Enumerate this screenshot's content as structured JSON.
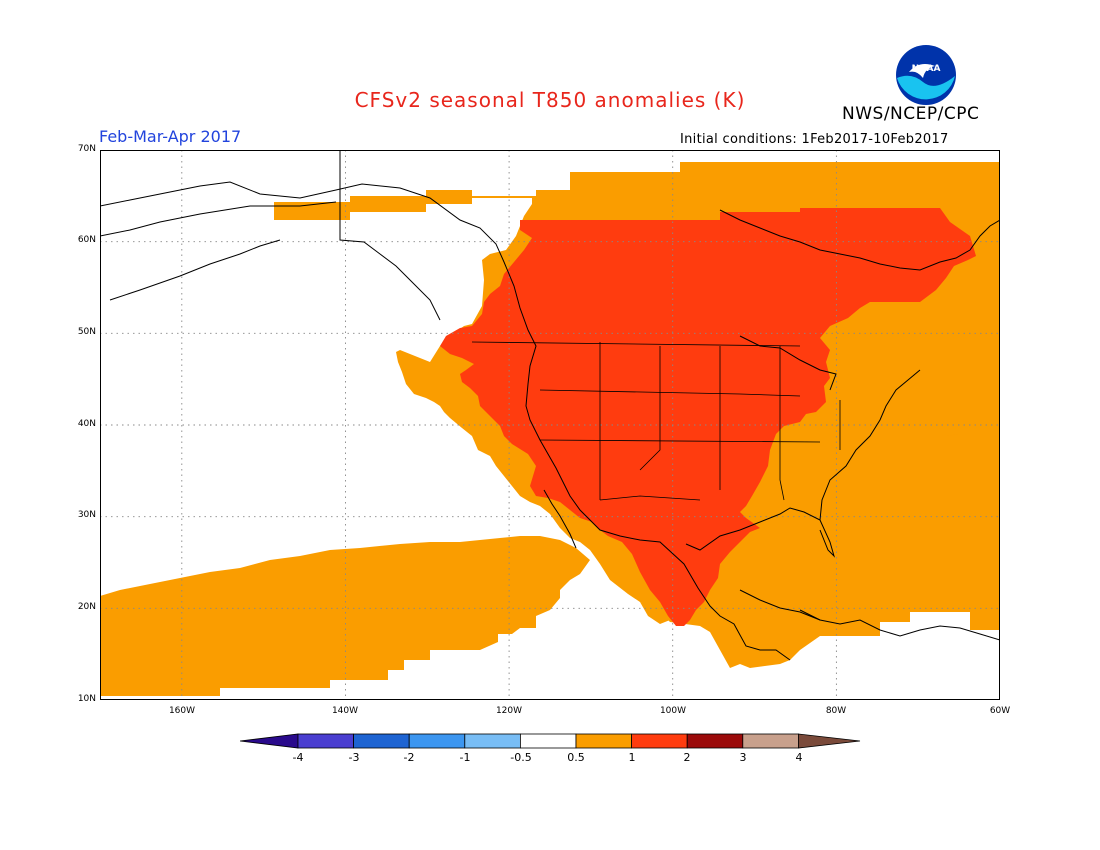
{
  "header": {
    "title": "CFSv2 seasonal T850 anomalies (K)",
    "agency": "NWS/NCEP/CPC",
    "period": "Feb-Mar-Apr 2017",
    "initial_conditions": "Initial conditions: 1Feb2017-10Feb2017",
    "logo_text": "NOAA"
  },
  "colors": {
    "title": "#e8261c",
    "period": "#2244dd",
    "anom_0_5_to_1": "#fa9d00",
    "anom_1_to_2": "#ff3c0f",
    "ocean_land_neutral": "#ffffff",
    "coastline": "#000000"
  },
  "map": {
    "projection": "lat-lon",
    "lon_range": [
      "170W",
      "60W"
    ],
    "lat_range": [
      "10N",
      "70N"
    ],
    "lat_labels": [
      "70N",
      "60N",
      "50N",
      "40N",
      "30N",
      "20N",
      "10N"
    ],
    "lon_labels": [
      "160W",
      "140W",
      "120W",
      "100W",
      "80W",
      "60W"
    ],
    "grid": "dotted"
  },
  "colorbar": {
    "labels": [
      "-4",
      "-3",
      "-2",
      "-1",
      "-0.5",
      "0.5",
      "1",
      "2",
      "3",
      "4"
    ],
    "colors": [
      "#2a0a8c",
      "#4a3ed0",
      "#1e64d2",
      "#3c96f0",
      "#78bdf5",
      "#ffffff",
      "#fa9d00",
      "#ff3c0f",
      "#9b0a0a",
      "#c8a08c",
      "#7a4a3a"
    ]
  }
}
